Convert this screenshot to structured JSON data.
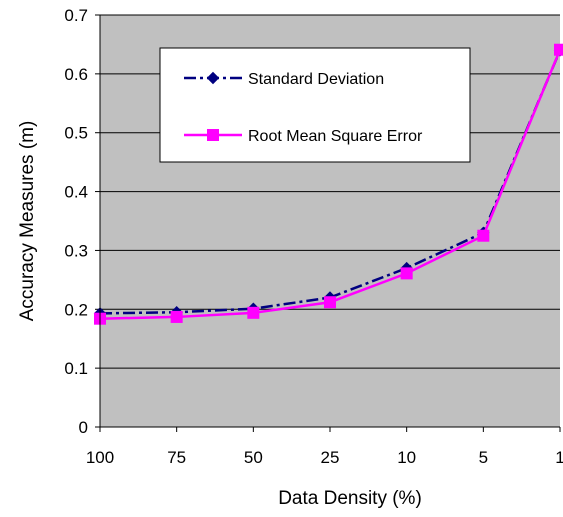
{
  "chart_data": {
    "type": "line",
    "title": "",
    "xlabel": "Data Density (%)",
    "ylabel": "Accuracy Measures (m)",
    "categories": [
      "100",
      "75",
      "50",
      "25",
      "10",
      "5",
      "1"
    ],
    "ylim": [
      0,
      0.7
    ],
    "yticks": [
      "0",
      "0.1",
      "0.2",
      "0.3",
      "0.4",
      "0.5",
      "0.6",
      "0.7"
    ],
    "grid": true,
    "plot_background": "#c0c0c0",
    "legend_position": "top-center",
    "series": [
      {
        "name": "Standard Deviation",
        "values": [
          0.193,
          0.195,
          0.201,
          0.22,
          0.27,
          0.33,
          0.64
        ],
        "color": "#000080",
        "marker": "diamond",
        "line_style": "dash-dot"
      },
      {
        "name": "Root Mean Square Error",
        "values": [
          0.184,
          0.187,
          0.194,
          0.212,
          0.261,
          0.325,
          0.641
        ],
        "color": "#ff00ff",
        "marker": "square",
        "line_style": "solid"
      }
    ]
  }
}
